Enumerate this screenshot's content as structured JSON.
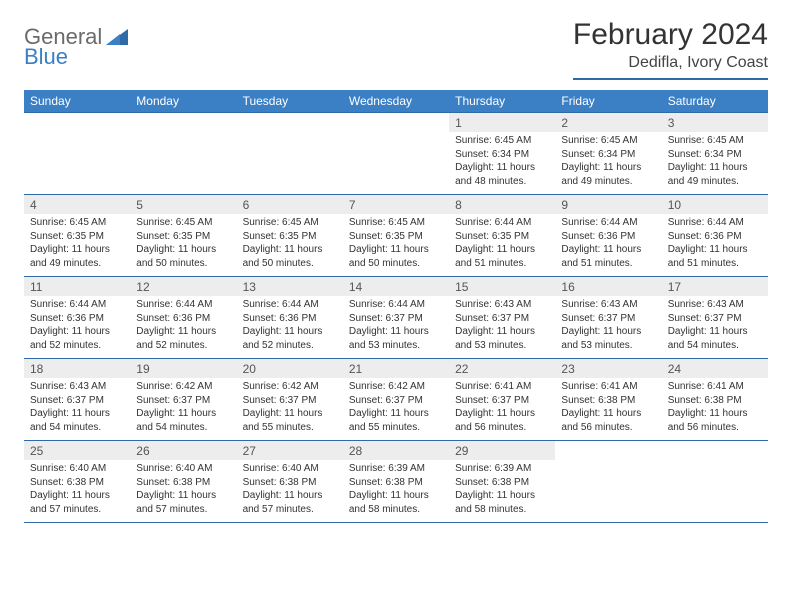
{
  "logo": {
    "word1": "General",
    "word2": "Blue"
  },
  "title": "February 2024",
  "location": "Dedifla, Ivory Coast",
  "day_headers": [
    "Sunday",
    "Monday",
    "Tuesday",
    "Wednesday",
    "Thursday",
    "Friday",
    "Saturday"
  ],
  "colors": {
    "header_bg": "#3b7fc4",
    "header_text": "#ffffff",
    "rule": "#2f6aa8",
    "daynum_bg": "#ededed",
    "body_text": "#333333"
  },
  "weeks": [
    [
      null,
      null,
      null,
      null,
      {
        "n": "1",
        "sunrise": "Sunrise: 6:45 AM",
        "sunset": "Sunset: 6:34 PM",
        "daylight": "Daylight: 11 hours and 48 minutes."
      },
      {
        "n": "2",
        "sunrise": "Sunrise: 6:45 AM",
        "sunset": "Sunset: 6:34 PM",
        "daylight": "Daylight: 11 hours and 49 minutes."
      },
      {
        "n": "3",
        "sunrise": "Sunrise: 6:45 AM",
        "sunset": "Sunset: 6:34 PM",
        "daylight": "Daylight: 11 hours and 49 minutes."
      }
    ],
    [
      {
        "n": "4",
        "sunrise": "Sunrise: 6:45 AM",
        "sunset": "Sunset: 6:35 PM",
        "daylight": "Daylight: 11 hours and 49 minutes."
      },
      {
        "n": "5",
        "sunrise": "Sunrise: 6:45 AM",
        "sunset": "Sunset: 6:35 PM",
        "daylight": "Daylight: 11 hours and 50 minutes."
      },
      {
        "n": "6",
        "sunrise": "Sunrise: 6:45 AM",
        "sunset": "Sunset: 6:35 PM",
        "daylight": "Daylight: 11 hours and 50 minutes."
      },
      {
        "n": "7",
        "sunrise": "Sunrise: 6:45 AM",
        "sunset": "Sunset: 6:35 PM",
        "daylight": "Daylight: 11 hours and 50 minutes."
      },
      {
        "n": "8",
        "sunrise": "Sunrise: 6:44 AM",
        "sunset": "Sunset: 6:35 PM",
        "daylight": "Daylight: 11 hours and 51 minutes."
      },
      {
        "n": "9",
        "sunrise": "Sunrise: 6:44 AM",
        "sunset": "Sunset: 6:36 PM",
        "daylight": "Daylight: 11 hours and 51 minutes."
      },
      {
        "n": "10",
        "sunrise": "Sunrise: 6:44 AM",
        "sunset": "Sunset: 6:36 PM",
        "daylight": "Daylight: 11 hours and 51 minutes."
      }
    ],
    [
      {
        "n": "11",
        "sunrise": "Sunrise: 6:44 AM",
        "sunset": "Sunset: 6:36 PM",
        "daylight": "Daylight: 11 hours and 52 minutes."
      },
      {
        "n": "12",
        "sunrise": "Sunrise: 6:44 AM",
        "sunset": "Sunset: 6:36 PM",
        "daylight": "Daylight: 11 hours and 52 minutes."
      },
      {
        "n": "13",
        "sunrise": "Sunrise: 6:44 AM",
        "sunset": "Sunset: 6:36 PM",
        "daylight": "Daylight: 11 hours and 52 minutes."
      },
      {
        "n": "14",
        "sunrise": "Sunrise: 6:44 AM",
        "sunset": "Sunset: 6:37 PM",
        "daylight": "Daylight: 11 hours and 53 minutes."
      },
      {
        "n": "15",
        "sunrise": "Sunrise: 6:43 AM",
        "sunset": "Sunset: 6:37 PM",
        "daylight": "Daylight: 11 hours and 53 minutes."
      },
      {
        "n": "16",
        "sunrise": "Sunrise: 6:43 AM",
        "sunset": "Sunset: 6:37 PM",
        "daylight": "Daylight: 11 hours and 53 minutes."
      },
      {
        "n": "17",
        "sunrise": "Sunrise: 6:43 AM",
        "sunset": "Sunset: 6:37 PM",
        "daylight": "Daylight: 11 hours and 54 minutes."
      }
    ],
    [
      {
        "n": "18",
        "sunrise": "Sunrise: 6:43 AM",
        "sunset": "Sunset: 6:37 PM",
        "daylight": "Daylight: 11 hours and 54 minutes."
      },
      {
        "n": "19",
        "sunrise": "Sunrise: 6:42 AM",
        "sunset": "Sunset: 6:37 PM",
        "daylight": "Daylight: 11 hours and 54 minutes."
      },
      {
        "n": "20",
        "sunrise": "Sunrise: 6:42 AM",
        "sunset": "Sunset: 6:37 PM",
        "daylight": "Daylight: 11 hours and 55 minutes."
      },
      {
        "n": "21",
        "sunrise": "Sunrise: 6:42 AM",
        "sunset": "Sunset: 6:37 PM",
        "daylight": "Daylight: 11 hours and 55 minutes."
      },
      {
        "n": "22",
        "sunrise": "Sunrise: 6:41 AM",
        "sunset": "Sunset: 6:37 PM",
        "daylight": "Daylight: 11 hours and 56 minutes."
      },
      {
        "n": "23",
        "sunrise": "Sunrise: 6:41 AM",
        "sunset": "Sunset: 6:38 PM",
        "daylight": "Daylight: 11 hours and 56 minutes."
      },
      {
        "n": "24",
        "sunrise": "Sunrise: 6:41 AM",
        "sunset": "Sunset: 6:38 PM",
        "daylight": "Daylight: 11 hours and 56 minutes."
      }
    ],
    [
      {
        "n": "25",
        "sunrise": "Sunrise: 6:40 AM",
        "sunset": "Sunset: 6:38 PM",
        "daylight": "Daylight: 11 hours and 57 minutes."
      },
      {
        "n": "26",
        "sunrise": "Sunrise: 6:40 AM",
        "sunset": "Sunset: 6:38 PM",
        "daylight": "Daylight: 11 hours and 57 minutes."
      },
      {
        "n": "27",
        "sunrise": "Sunrise: 6:40 AM",
        "sunset": "Sunset: 6:38 PM",
        "daylight": "Daylight: 11 hours and 57 minutes."
      },
      {
        "n": "28",
        "sunrise": "Sunrise: 6:39 AM",
        "sunset": "Sunset: 6:38 PM",
        "daylight": "Daylight: 11 hours and 58 minutes."
      },
      {
        "n": "29",
        "sunrise": "Sunrise: 6:39 AM",
        "sunset": "Sunset: 6:38 PM",
        "daylight": "Daylight: 11 hours and 58 minutes."
      },
      null,
      null
    ]
  ]
}
